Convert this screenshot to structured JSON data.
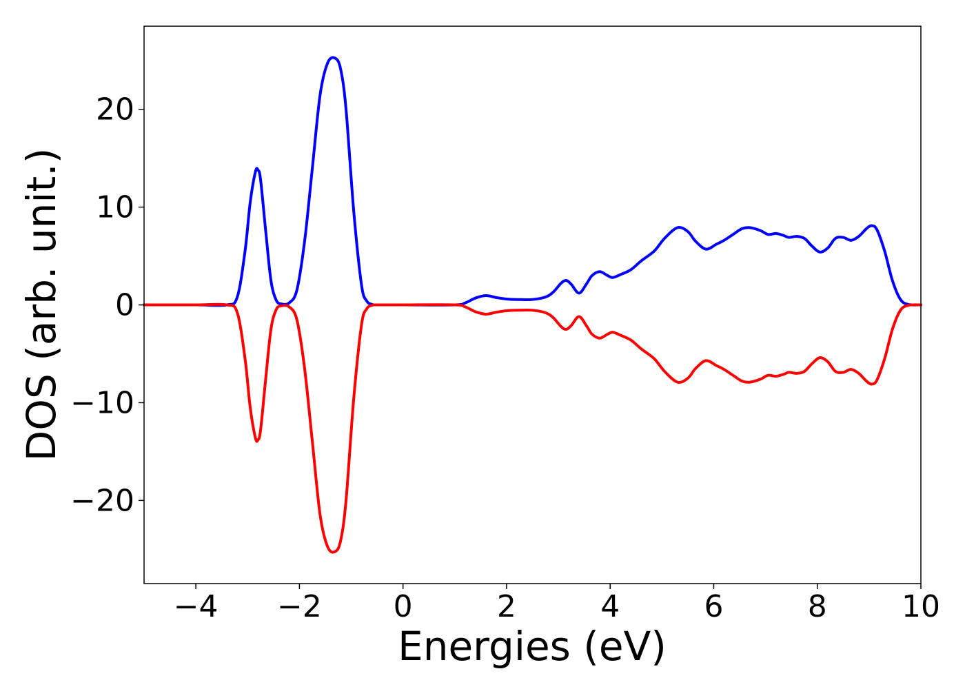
{
  "chart_data": {
    "type": "line",
    "title": "",
    "xlabel": "Energies (eV)",
    "ylabel": "DOS (arb. unit.)",
    "xlim": [
      -5,
      10
    ],
    "ylim": [
      -28.5,
      28.5
    ],
    "xticks": [
      -4,
      -2,
      0,
      2,
      4,
      6,
      8,
      10
    ],
    "yticks": [
      -20,
      -10,
      0,
      10,
      20
    ],
    "xtick_labels": [
      "−4",
      "−2",
      "0",
      "2",
      "4",
      "6",
      "8",
      "10"
    ],
    "ytick_labels": [
      "−20",
      "−10",
      "0",
      "10",
      "20"
    ],
    "grid": false,
    "legend": null,
    "series": [
      {
        "color": "#0000ff",
        "x": [
          -5,
          -4,
          -3.4,
          -3.2,
          -3.05,
          -2.95,
          -2.85,
          -2.8,
          -2.75,
          -2.65,
          -2.55,
          -2.45,
          -2.35,
          -2.2,
          -2.05,
          -1.9,
          -1.75,
          -1.6,
          -1.45,
          -1.3,
          -1.2,
          -1.1,
          -0.95,
          -0.8,
          -0.7,
          -0.6,
          -0.5,
          0,
          1.0,
          1.2,
          1.4,
          1.6,
          1.8,
          2.0,
          2.2,
          2.5,
          2.75,
          2.9,
          3.05,
          3.15,
          3.25,
          3.4,
          3.55,
          3.65,
          3.8,
          3.95,
          4.05,
          4.2,
          4.4,
          4.6,
          4.85,
          5.05,
          5.3,
          5.5,
          5.65,
          5.85,
          6.05,
          6.2,
          6.4,
          6.55,
          6.7,
          6.9,
          7.05,
          7.2,
          7.35,
          7.45,
          7.6,
          7.75,
          7.9,
          8.05,
          8.2,
          8.35,
          8.5,
          8.65,
          8.8,
          8.95,
          9.05,
          9.15,
          9.3,
          9.45,
          9.6,
          9.75,
          10
        ],
        "y": [
          0,
          0,
          0,
          0.8,
          5.5,
          10.5,
          13.6,
          13.8,
          12.8,
          7.5,
          2.5,
          0.5,
          0.1,
          0.2,
          1.5,
          6.5,
          14.0,
          21.5,
          24.8,
          25.2,
          24.0,
          20.0,
          9.5,
          2.0,
          0.4,
          0.05,
          0,
          0,
          0,
          0.2,
          0.7,
          0.95,
          0.75,
          0.6,
          0.55,
          0.55,
          0.8,
          1.3,
          2.2,
          2.5,
          2.1,
          1.2,
          2.2,
          3.0,
          3.4,
          3.0,
          2.8,
          3.1,
          3.6,
          4.5,
          5.5,
          6.8,
          7.9,
          7.5,
          6.5,
          5.7,
          6.2,
          6.6,
          7.3,
          7.8,
          7.9,
          7.6,
          7.2,
          7.3,
          7.1,
          6.9,
          7.0,
          6.8,
          6.0,
          5.4,
          5.8,
          6.8,
          6.9,
          6.6,
          7.0,
          7.8,
          8.1,
          7.7,
          5.5,
          2.5,
          0.6,
          0.05,
          0
        ]
      },
      {
        "color": "#ff0000",
        "x": [
          -5,
          -4,
          -3.4,
          -3.2,
          -3.05,
          -2.95,
          -2.85,
          -2.8,
          -2.75,
          -2.65,
          -2.55,
          -2.45,
          -2.35,
          -2.2,
          -2.05,
          -1.9,
          -1.75,
          -1.6,
          -1.45,
          -1.3,
          -1.2,
          -1.1,
          -0.95,
          -0.8,
          -0.7,
          -0.6,
          -0.5,
          0,
          1.0,
          1.2,
          1.4,
          1.6,
          1.8,
          2.0,
          2.2,
          2.5,
          2.75,
          2.9,
          3.05,
          3.15,
          3.25,
          3.4,
          3.55,
          3.65,
          3.8,
          3.95,
          4.05,
          4.2,
          4.4,
          4.6,
          4.85,
          5.05,
          5.3,
          5.5,
          5.65,
          5.85,
          6.05,
          6.2,
          6.4,
          6.55,
          6.7,
          6.9,
          7.05,
          7.2,
          7.35,
          7.45,
          7.6,
          7.75,
          7.9,
          8.05,
          8.2,
          8.35,
          8.5,
          8.65,
          8.8,
          8.95,
          9.05,
          9.15,
          9.3,
          9.45,
          9.6,
          9.75,
          10
        ],
        "y": [
          0,
          0,
          0,
          -0.8,
          -5.5,
          -10.5,
          -13.6,
          -13.8,
          -12.8,
          -7.5,
          -2.5,
          -0.5,
          -0.1,
          -0.2,
          -1.5,
          -6.5,
          -14.0,
          -21.5,
          -24.8,
          -25.2,
          -24.0,
          -20.0,
          -9.5,
          -2.0,
          -0.4,
          -0.05,
          0,
          0,
          0,
          -0.2,
          -0.7,
          -0.95,
          -0.75,
          -0.6,
          -0.55,
          -0.55,
          -0.8,
          -1.3,
          -2.2,
          -2.5,
          -2.1,
          -1.2,
          -2.2,
          -3.0,
          -3.4,
          -3.0,
          -2.8,
          -3.1,
          -3.6,
          -4.5,
          -5.5,
          -6.8,
          -7.9,
          -7.5,
          -6.5,
          -5.7,
          -6.2,
          -6.6,
          -7.3,
          -7.8,
          -7.9,
          -7.6,
          -7.2,
          -7.3,
          -7.1,
          -6.9,
          -7.0,
          -6.8,
          -6.0,
          -5.4,
          -5.8,
          -6.8,
          -6.9,
          -6.6,
          -7.0,
          -7.8,
          -8.1,
          -7.7,
          -5.5,
          -2.5,
          -0.6,
          -0.05,
          0
        ]
      }
    ]
  }
}
